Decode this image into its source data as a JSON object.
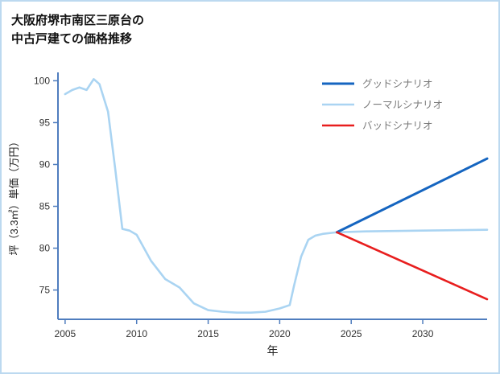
{
  "page": {
    "title": "大阪府堺市南区三原台の\n中古戸建ての価格推移"
  },
  "chart_data": {
    "type": "line",
    "title": "大阪府堺市南区三原台の中古戸建ての価格推移",
    "xlabel": "年",
    "ylabel": "坪（3.3㎡）単価（万円）",
    "xlim": [
      2004.5,
      2034.5
    ],
    "ylim": [
      71.5,
      101
    ],
    "xticks": [
      2005,
      2010,
      2015,
      2020,
      2025,
      2030
    ],
    "yticks": [
      75,
      80,
      85,
      90,
      95,
      100
    ],
    "grid": false,
    "legend": {
      "position": "upper right"
    },
    "colors": {
      "spine": "#4f7dbe",
      "tick_label": "#333333",
      "legend_text": "#7a7a7a",
      "good": "#1565c0",
      "normal": "#aad4f2",
      "bad": "#e81e1e"
    },
    "series": [
      {
        "key": "good-scenario",
        "name": "グッドシナリオ",
        "color": "#1565c0",
        "x": [
          2024,
          2034.5
        ],
        "y": [
          81.9,
          90.7
        ]
      },
      {
        "key": "normal-scenario",
        "name": "ノーマルシナリオ",
        "color": "#aad4f2",
        "x": [
          2005,
          2005.5,
          2006,
          2006.5,
          2007,
          2007.4,
          2008,
          2008.5,
          2009,
          2009.5,
          2010,
          2011,
          2012,
          2013,
          2014,
          2015,
          2016,
          2017,
          2018,
          2019,
          2020,
          2020.7,
          2021,
          2021.5,
          2022,
          2022.5,
          2023,
          2024,
          2026,
          2030,
          2034.5
        ],
        "y": [
          98.4,
          98.9,
          99.2,
          98.9,
          100.2,
          99.6,
          96.3,
          89.5,
          82.3,
          82.1,
          81.6,
          78.5,
          76.3,
          75.3,
          73.4,
          72.6,
          72.4,
          72.3,
          72.3,
          72.4,
          72.8,
          73.2,
          75.5,
          79.0,
          81.0,
          81.5,
          81.7,
          81.9,
          82.0,
          82.1,
          82.2
        ]
      },
      {
        "key": "bad-scenario",
        "name": "バッドシナリオ",
        "color": "#e81e1e",
        "x": [
          2024,
          2034.5
        ],
        "y": [
          81.9,
          73.9
        ]
      }
    ]
  }
}
